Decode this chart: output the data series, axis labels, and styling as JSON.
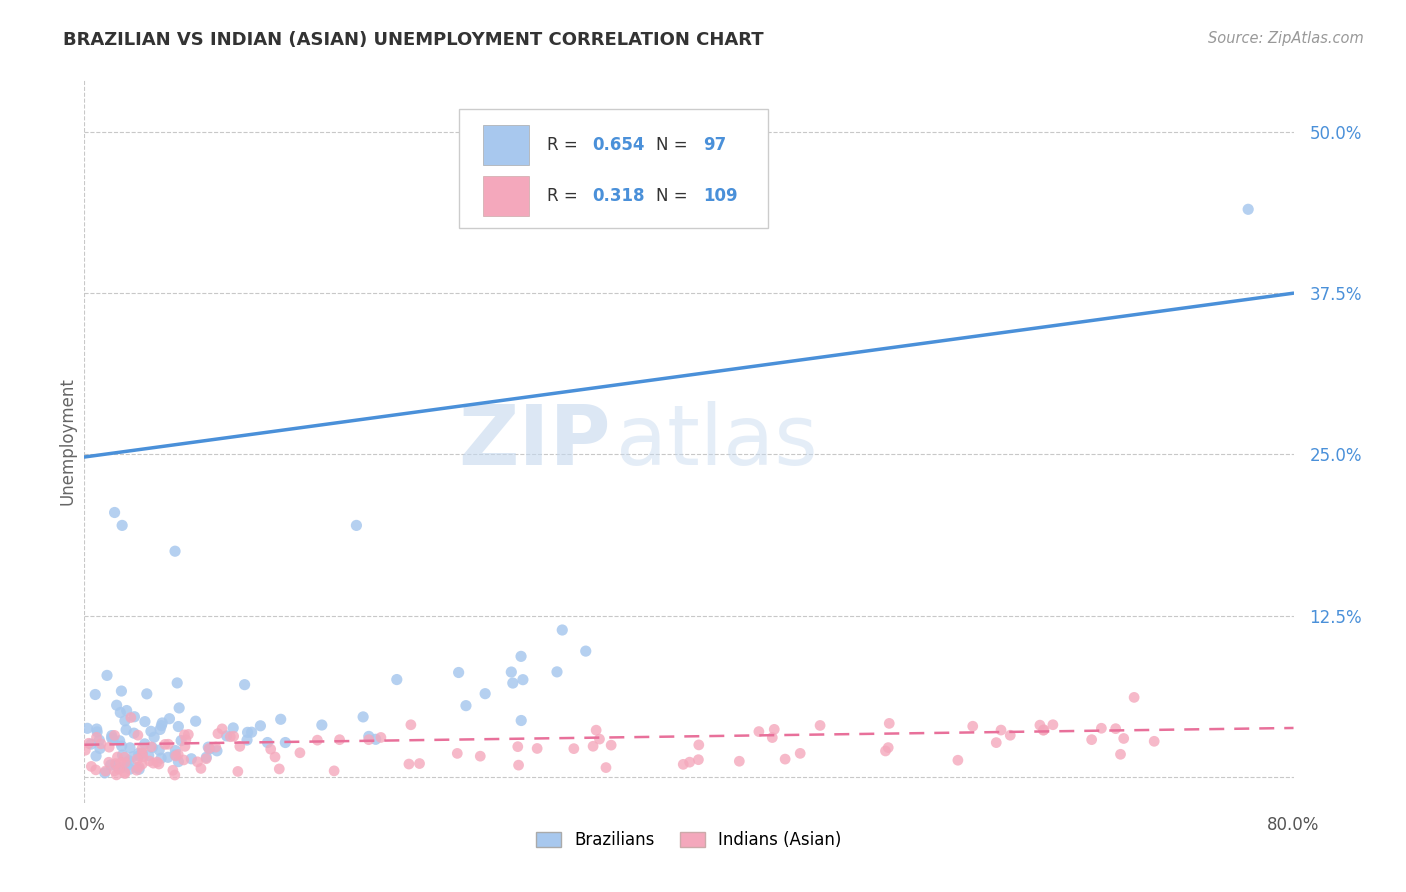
{
  "title": "BRAZILIAN VS INDIAN (ASIAN) UNEMPLOYMENT CORRELATION CHART",
  "source_text": "Source: ZipAtlas.com",
  "ylabel": "Unemployment",
  "xlim": [
    0.0,
    0.8
  ],
  "ylim": [
    -0.02,
    0.54
  ],
  "ytick_vals": [
    0.0,
    0.125,
    0.25,
    0.375,
    0.5
  ],
  "ytick_labels": [
    "",
    "12.5%",
    "25.0%",
    "37.5%",
    "50.0%"
  ],
  "xtick_vals": [
    0.0,
    0.1,
    0.2,
    0.3,
    0.4,
    0.5,
    0.6,
    0.7,
    0.8
  ],
  "xtick_labels": [
    "0.0%",
    "",
    "",
    "",
    "",
    "",
    "",
    "",
    "80.0%"
  ],
  "blue_R": 0.654,
  "blue_N": 97,
  "pink_R": 0.318,
  "pink_N": 109,
  "blue_color": "#A8C8EE",
  "pink_color": "#F4A8BC",
  "blue_line_color": "#4A90D9",
  "pink_line_color": "#E8709A",
  "legend_label_blue": "Brazilians",
  "legend_label_pink": "Indians (Asian)",
  "watermark_zip": "ZIP",
  "watermark_atlas": "atlas",
  "background_color": "#FFFFFF",
  "grid_color": "#C8C8C8",
  "title_color": "#333333",
  "tick_color": "#4A90D9",
  "blue_line_y0": 0.248,
  "blue_line_y1": 0.375,
  "pink_line_y0": 0.025,
  "pink_line_y1": 0.038
}
